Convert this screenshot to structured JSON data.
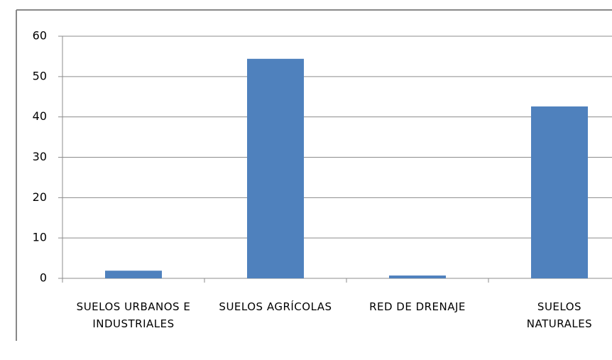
{
  "chart_data": {
    "type": "bar",
    "categories": [
      "SUELOS URBANOS E INDUSTRIALES",
      "SUELOS AGRÍCOLAS",
      "RED DE DRENAJE",
      "SUELOS NATURALES"
    ],
    "values": [
      1.9,
      54.4,
      0.7,
      42.6
    ],
    "color": "#4f81bd",
    "ylim": [
      0,
      60
    ],
    "yticks": [
      0,
      10,
      20,
      30,
      40,
      50,
      60
    ],
    "grid": true
  }
}
